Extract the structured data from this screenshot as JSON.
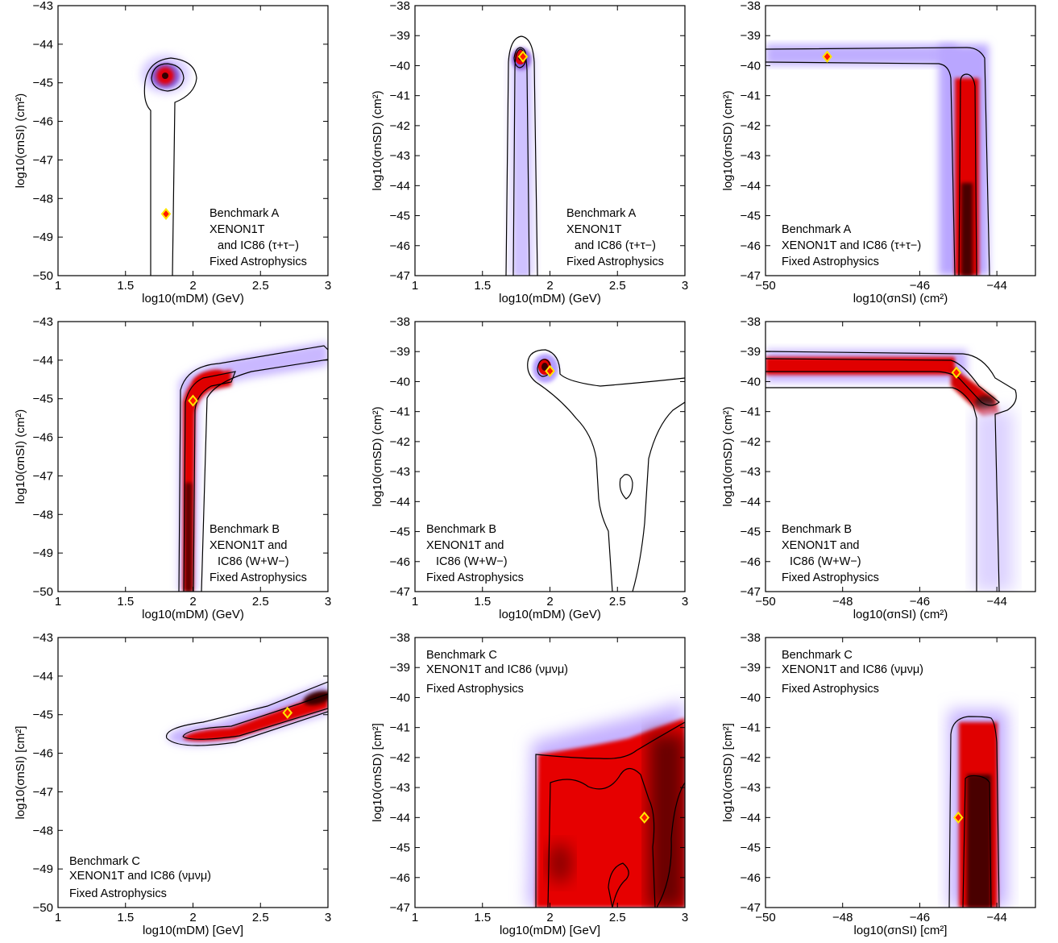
{
  "figure": {
    "colors": {
      "contour_line": "#000000",
      "best_fit_fill": "#ff1a00",
      "best_fit_stroke": "#ffe600",
      "plot_bg": "#ffffff"
    },
    "panels": [
      {
        "id": "A1",
        "xlabel": "log10(mDM) (GeV)",
        "ylabel": "log10(σnSI) (cm²)",
        "legend": [
          "Benchmark A",
          "XENON1T",
          "and IC86 (τ+τ−)",
          "Fixed Astrophysics"
        ]
      },
      {
        "id": "A2",
        "xlabel": "log10(mDM) (GeV)",
        "ylabel": "log10(σnSD) (cm²)",
        "legend": [
          "Benchmark A",
          "XENON1T",
          "and IC86 (τ+τ−)",
          "Fixed Astrophysics"
        ]
      },
      {
        "id": "A3",
        "xlabel": "log10(σnSI) (cm²)",
        "ylabel": "log10(σnSD) (cm²)",
        "legend": [
          "Benchmark A",
          "XENON1T and IC86 (τ+τ−)",
          "Fixed Astrophysics"
        ]
      },
      {
        "id": "B1",
        "xlabel": "log10(mDM) (GeV)",
        "ylabel": "log10(σnSI) (cm²)",
        "legend": [
          "Benchmark B",
          "XENON1T and",
          "IC86 (W+W−)",
          "Fixed Astrophysics"
        ]
      },
      {
        "id": "B2",
        "xlabel": "log10(mDM) (GeV)",
        "ylabel": "log10(σnSD) (cm²)",
        "legend": [
          "Benchmark B",
          "XENON1T and",
          "IC86 (W+W−)",
          "Fixed Astrophysics"
        ]
      },
      {
        "id": "B3",
        "xlabel": "log10(σnSI) (cm²)",
        "ylabel": "log10(σnSD) (cm²)",
        "legend": [
          "Benchmark B",
          "XENON1T and",
          "IC86 (W+W−)",
          "Fixed Astrophysics"
        ]
      },
      {
        "id": "C1",
        "xlabel": "log10(mDM) [GeV]",
        "ylabel": "log10(σnSI) [cm²]",
        "legend": [
          "Benchmark C",
          "XENON1T and IC86 (νμνμ)",
          "Fixed Astrophysics"
        ]
      },
      {
        "id": "C2",
        "xlabel": "log10(mDM) [GeV]",
        "ylabel": "log10(σnSD) [cm²]",
        "legend": [
          "Benchmark C",
          "XENON1T and IC86 (νμνμ)",
          "Fixed Astrophysics"
        ]
      },
      {
        "id": "C3",
        "xlabel": "log10(σnSI) [cm²]",
        "ylabel": "log10(σnSD) [cm²]",
        "legend": [
          "Benchmark C",
          "XENON1T and IC86 (νμνμ)",
          "Fixed Astrophysics"
        ]
      }
    ]
  },
  "chart_data": [
    {
      "type": "heatmap",
      "panel": "A1",
      "xlim": [
        1,
        3
      ],
      "ylim": [
        -50,
        -43
      ],
      "xticks": [
        "1",
        "1.5",
        "2",
        "2.5",
        "3"
      ],
      "yticks": [
        "−50",
        "−49",
        "−48",
        "−47",
        "−46",
        "−45",
        "−44",
        "−43"
      ],
      "best_fit": {
        "x": 1.8,
        "y": -48.4
      },
      "posterior_peak": {
        "x": 1.8,
        "y": -44.8
      }
    },
    {
      "type": "heatmap",
      "panel": "A2",
      "xlim": [
        1,
        3
      ],
      "ylim": [
        -47,
        -38
      ],
      "xticks": [
        "1",
        "1.5",
        "2",
        "2.5",
        "3"
      ],
      "yticks": [
        "−47",
        "−46",
        "−45",
        "−44",
        "−43",
        "−42",
        "−41",
        "−40",
        "−39",
        "−38"
      ],
      "best_fit": {
        "x": 1.8,
        "y": -39.7
      },
      "posterior_peak": {
        "x": 1.78,
        "y": -39.6
      }
    },
    {
      "type": "heatmap",
      "panel": "A3",
      "xlim": [
        -50,
        -43
      ],
      "ylim": [
        -47,
        -38
      ],
      "xticks": [
        "−50",
        "−46",
        "−44"
      ],
      "yticks": [
        "−47",
        "−46",
        "−45",
        "−44",
        "−43",
        "−42",
        "−41",
        "−40",
        "−39",
        "−38"
      ],
      "best_fit": {
        "x": -48.4,
        "y": -39.7
      },
      "posterior_peak": {
        "x": -44.8,
        "y": -44.5
      }
    },
    {
      "type": "heatmap",
      "panel": "B1",
      "xlim": [
        1,
        3
      ],
      "ylim": [
        -50,
        -43
      ],
      "xticks": [
        "1",
        "1.5",
        "2",
        "2.5",
        "3"
      ],
      "yticks": [
        "−50",
        "−49",
        "−48",
        "−47",
        "−46",
        "−45",
        "−44",
        "−43"
      ],
      "best_fit": {
        "x": 2.0,
        "y": -45.05
      },
      "posterior_peak": {
        "x": 2.05,
        "y": -44.7
      }
    },
    {
      "type": "heatmap",
      "panel": "B2",
      "xlim": [
        1,
        3
      ],
      "ylim": [
        -47,
        -38
      ],
      "xticks": [
        "1",
        "1.5",
        "2",
        "2.5",
        "3"
      ],
      "yticks": [
        "−47",
        "−46",
        "−45",
        "−44",
        "−43",
        "−42",
        "−41",
        "−40",
        "−39",
        "−38"
      ],
      "best_fit": {
        "x": 2.0,
        "y": -39.65
      },
      "posterior_peak": {
        "x": 1.98,
        "y": -39.4
      }
    },
    {
      "type": "heatmap",
      "panel": "B3",
      "xlim": [
        -50,
        -43
      ],
      "ylim": [
        -47,
        -38
      ],
      "xticks": [
        "−50",
        "−48",
        "−46",
        "−44"
      ],
      "yticks": [
        "−47",
        "−46",
        "−45",
        "−44",
        "−43",
        "−42",
        "−41",
        "−40",
        "−39",
        "−38"
      ],
      "best_fit": {
        "x": -45.05,
        "y": -39.7
      },
      "posterior_peak": {
        "x": -44.5,
        "y": -40.3
      }
    },
    {
      "type": "heatmap",
      "panel": "C1",
      "xlim": [
        1,
        3
      ],
      "ylim": [
        -50,
        -43
      ],
      "xticks": [
        "1",
        "1.5",
        "2",
        "2.5",
        "3"
      ],
      "yticks": [
        "−50",
        "−49",
        "−48",
        "−47",
        "−46",
        "−45",
        "−44",
        "−43"
      ],
      "best_fit": {
        "x": 2.7,
        "y": -44.95
      },
      "posterior_peak": {
        "x": 2.85,
        "y": -44.7
      }
    },
    {
      "type": "heatmap",
      "panel": "C2",
      "xlim": [
        1,
        3
      ],
      "ylim": [
        -47,
        -38
      ],
      "xticks": [
        "1",
        "1.5",
        "2",
        "2.5",
        "3"
      ],
      "yticks": [
        "−47",
        "−46",
        "−45",
        "−44",
        "−43",
        "−42",
        "−41",
        "−40",
        "−39",
        "−38"
      ],
      "best_fit": {
        "x": 2.7,
        "y": -44.0
      },
      "posterior_peak": {
        "x": 2.9,
        "y": -44.5
      }
    },
    {
      "type": "heatmap",
      "panel": "C3",
      "xlim": [
        -50,
        -43
      ],
      "ylim": [
        -47,
        -38
      ],
      "xticks": [
        "−50",
        "−48",
        "−46",
        "−44"
      ],
      "yticks": [
        "−47",
        "−46",
        "−45",
        "−44",
        "−43",
        "−42",
        "−41",
        "−40",
        "−39",
        "−38"
      ],
      "best_fit": {
        "x": -45.0,
        "y": -44.0
      },
      "posterior_peak": {
        "x": -45.0,
        "y": -45.0
      }
    }
  ]
}
